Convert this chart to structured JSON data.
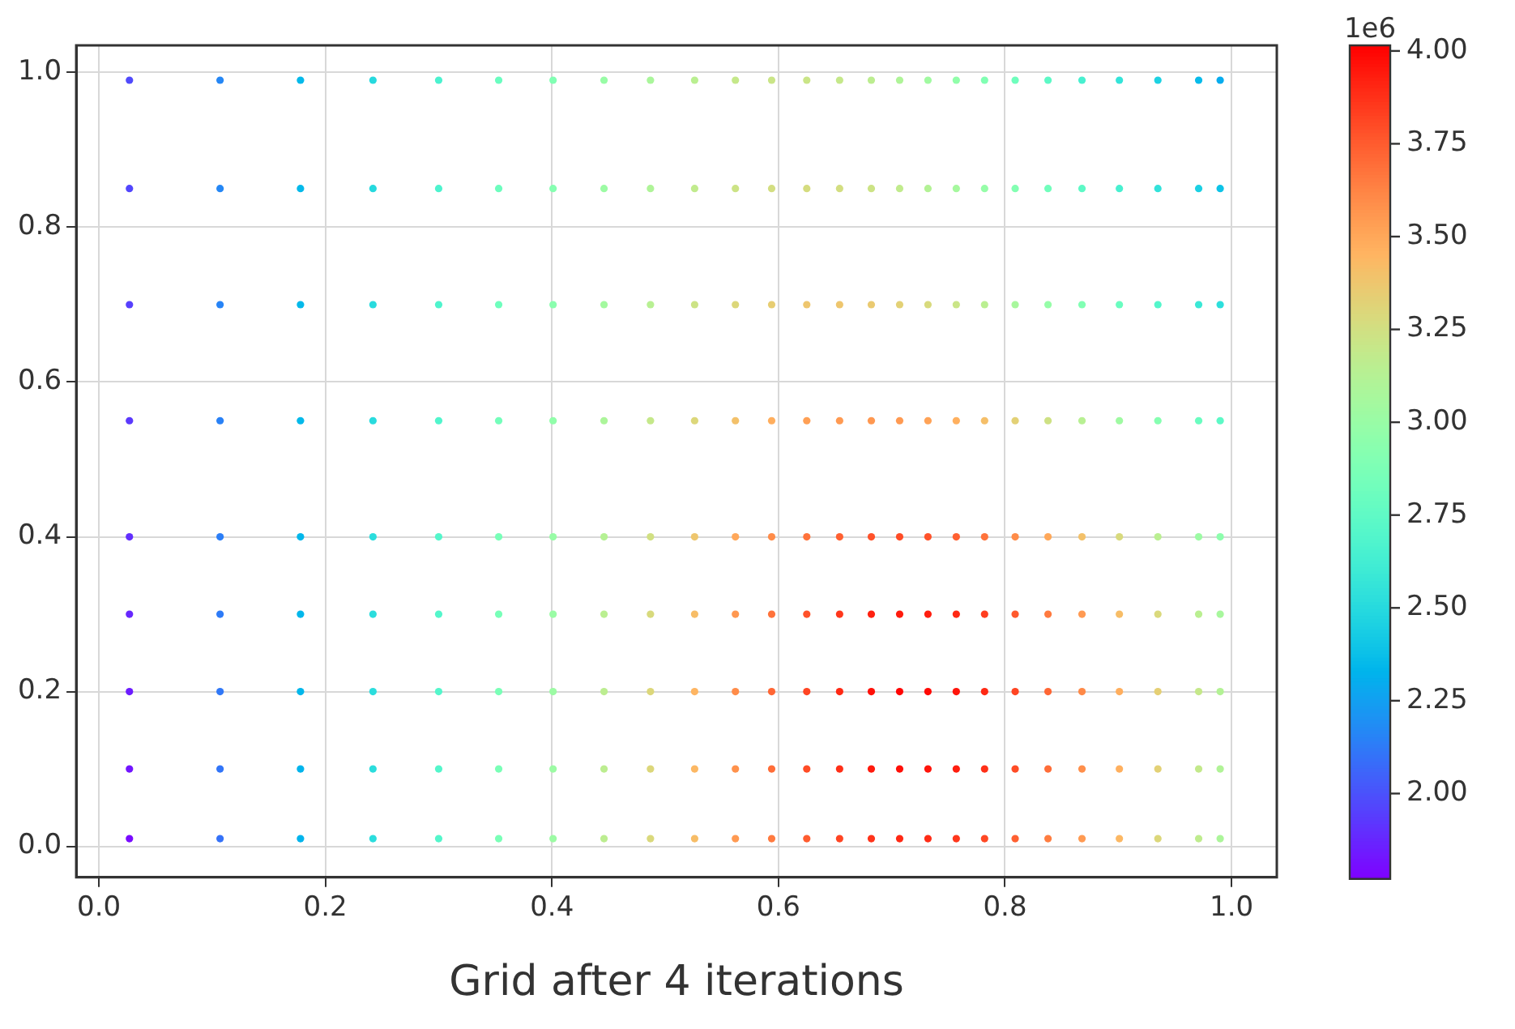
{
  "chart_data": {
    "type": "scatter",
    "xlabel": "Grid after 4 iterations",
    "clabel": "1e6",
    "grid": true,
    "marker": "circle",
    "xlim": [
      -0.02,
      1.04
    ],
    "ylim": [
      -0.04,
      1.035
    ],
    "xticks": [
      {
        "value": 0,
        "label": "0.0"
      },
      {
        "value": 0.2,
        "label": "0.2"
      },
      {
        "value": 0.4,
        "label": "0.4"
      },
      {
        "value": 0.6,
        "label": "0.6"
      },
      {
        "value": 0.8,
        "label": "0.8"
      },
      {
        "value": 1,
        "label": "1.0"
      }
    ],
    "yticks": [
      {
        "value": 0,
        "label": "0.0"
      },
      {
        "value": 0.2,
        "label": "0.2"
      },
      {
        "value": 0.4,
        "label": "0.4"
      },
      {
        "value": 0.6,
        "label": "0.6"
      },
      {
        "value": 0.8,
        "label": "0.8"
      },
      {
        "value": 1,
        "label": "1.0"
      }
    ],
    "clim": [
      1.77,
      4.015
    ],
    "cticks": [
      {
        "value": 2,
        "label": "2.00"
      },
      {
        "value": 2.25,
        "label": "2.25"
      },
      {
        "value": 2.5,
        "label": "2.50"
      },
      {
        "value": 2.75,
        "label": "2.75"
      },
      {
        "value": 3,
        "label": "3.00"
      },
      {
        "value": 3.25,
        "label": "3.25"
      },
      {
        "value": 3.5,
        "label": "3.50"
      },
      {
        "value": 3.75,
        "label": "3.75"
      },
      {
        "value": 4,
        "label": "4.00"
      }
    ],
    "x": [
      0.027,
      0.027,
      0.027,
      0.027,
      0.027,
      0.027,
      0.027,
      0.027,
      0.027,
      0.107,
      0.107,
      0.107,
      0.107,
      0.107,
      0.107,
      0.107,
      0.107,
      0.107,
      0.178,
      0.178,
      0.178,
      0.178,
      0.178,
      0.178,
      0.178,
      0.178,
      0.178,
      0.242,
      0.242,
      0.242,
      0.242,
      0.242,
      0.242,
      0.242,
      0.242,
      0.242,
      0.3,
      0.3,
      0.3,
      0.3,
      0.3,
      0.3,
      0.3,
      0.3,
      0.3,
      0.353,
      0.353,
      0.353,
      0.353,
      0.353,
      0.353,
      0.353,
      0.353,
      0.353,
      0.401,
      0.401,
      0.401,
      0.401,
      0.401,
      0.401,
      0.401,
      0.401,
      0.401,
      0.446,
      0.446,
      0.446,
      0.446,
      0.446,
      0.446,
      0.446,
      0.446,
      0.446,
      0.487,
      0.487,
      0.487,
      0.487,
      0.487,
      0.487,
      0.487,
      0.487,
      0.487,
      0.526,
      0.526,
      0.526,
      0.526,
      0.526,
      0.526,
      0.526,
      0.526,
      0.526,
      0.562,
      0.562,
      0.562,
      0.562,
      0.562,
      0.562,
      0.562,
      0.562,
      0.562,
      0.594,
      0.594,
      0.594,
      0.594,
      0.594,
      0.594,
      0.594,
      0.594,
      0.594,
      0.625,
      0.625,
      0.625,
      0.625,
      0.625,
      0.625,
      0.625,
      0.625,
      0.625,
      0.654,
      0.654,
      0.654,
      0.654,
      0.654,
      0.654,
      0.654,
      0.654,
      0.654,
      0.682,
      0.682,
      0.682,
      0.682,
      0.682,
      0.682,
      0.682,
      0.682,
      0.682,
      0.707,
      0.707,
      0.707,
      0.707,
      0.707,
      0.707,
      0.707,
      0.707,
      0.707,
      0.732,
      0.732,
      0.732,
      0.732,
      0.732,
      0.732,
      0.732,
      0.732,
      0.732,
      0.757,
      0.757,
      0.757,
      0.757,
      0.757,
      0.757,
      0.757,
      0.757,
      0.757,
      0.782,
      0.782,
      0.782,
      0.782,
      0.782,
      0.782,
      0.782,
      0.782,
      0.782,
      0.809,
      0.809,
      0.809,
      0.809,
      0.809,
      0.809,
      0.809,
      0.809,
      0.809,
      0.838,
      0.838,
      0.838,
      0.838,
      0.838,
      0.838,
      0.838,
      0.838,
      0.838,
      0.868,
      0.868,
      0.868,
      0.868,
      0.868,
      0.868,
      0.868,
      0.868,
      0.868,
      0.901,
      0.901,
      0.901,
      0.901,
      0.901,
      0.901,
      0.901,
      0.901,
      0.901,
      0.935,
      0.935,
      0.935,
      0.935,
      0.935,
      0.935,
      0.935,
      0.935,
      0.935,
      0.971,
      0.971,
      0.971,
      0.971,
      0.971,
      0.971,
      0.971,
      0.971,
      0.971,
      0.99,
      0.99,
      0.99,
      0.99,
      0.99,
      0.99,
      0.99,
      0.99,
      0.99
    ],
    "values": [
      0.99,
      0.85,
      0.7,
      0.55,
      0.4,
      0.3,
      0.2,
      0.1,
      0.01,
      0.99,
      0.85,
      0.7,
      0.55,
      0.4,
      0.3,
      0.2,
      0.1,
      0.01,
      0.99,
      0.85,
      0.7,
      0.55,
      0.4,
      0.3,
      0.2,
      0.1,
      0.01,
      0.99,
      0.85,
      0.7,
      0.55,
      0.4,
      0.3,
      0.2,
      0.1,
      0.01,
      0.99,
      0.85,
      0.7,
      0.55,
      0.4,
      0.3,
      0.2,
      0.1,
      0.01,
      0.99,
      0.85,
      0.7,
      0.55,
      0.4,
      0.3,
      0.2,
      0.1,
      0.01,
      0.99,
      0.85,
      0.7,
      0.55,
      0.4,
      0.3,
      0.2,
      0.1,
      0.01,
      0.99,
      0.85,
      0.7,
      0.55,
      0.4,
      0.3,
      0.2,
      0.1,
      0.01,
      0.99,
      0.85,
      0.7,
      0.55,
      0.4,
      0.3,
      0.2,
      0.1,
      0.01,
      0.99,
      0.85,
      0.7,
      0.55,
      0.4,
      0.3,
      0.2,
      0.1,
      0.01,
      0.99,
      0.85,
      0.7,
      0.55,
      0.4,
      0.3,
      0.2,
      0.1,
      0.01,
      0.99,
      0.85,
      0.7,
      0.55,
      0.4,
      0.3,
      0.2,
      0.1,
      0.01,
      0.99,
      0.85,
      0.7,
      0.55,
      0.4,
      0.3,
      0.2,
      0.1,
      0.01,
      0.99,
      0.85,
      0.7,
      0.55,
      0.4,
      0.3,
      0.2,
      0.1,
      0.01,
      0.99,
      0.85,
      0.7,
      0.55,
      0.4,
      0.3,
      0.2,
      0.1,
      0.01,
      0.99,
      0.85,
      0.7,
      0.55,
      0.4,
      0.3,
      0.2,
      0.1,
      0.01,
      0.99,
      0.85,
      0.7,
      0.55,
      0.4,
      0.3,
      0.2,
      0.1,
      0.01,
      0.99,
      0.85,
      0.7,
      0.55,
      0.4,
      0.3,
      0.2,
      0.1,
      0.01,
      0.99,
      0.85,
      0.7,
      0.55,
      0.4,
      0.3,
      0.2,
      0.1,
      0.01,
      0.99,
      0.85,
      0.7,
      0.55,
      0.4,
      0.3,
      0.2,
      0.1,
      0.01,
      0.99,
      0.85,
      0.7,
      0.55,
      0.4,
      0.3,
      0.2,
      0.1,
      0.01,
      0.99,
      0.85,
      0.7,
      0.55,
      0.4,
      0.3,
      0.2,
      0.1,
      0.01,
      0.99,
      0.85,
      0.7,
      0.55,
      0.4,
      0.3,
      0.2,
      0.1,
      0.01,
      0.99,
      0.85,
      0.7,
      0.55,
      0.4,
      0.3,
      0.2,
      0.1,
      0.01,
      0.99,
      0.85,
      0.7,
      0.55,
      0.4,
      0.3,
      0.2,
      0.1,
      0.01,
      0.99,
      0.85,
      0.7,
      0.55,
      0.4,
      0.3,
      0.2,
      0.1,
      0.01
    ],
    "cvalues": [
      1.98,
      1.97,
      1.95,
      1.93,
      1.9,
      1.88,
      1.85,
      1.83,
      1.8,
      2.17,
      2.17,
      2.16,
      2.15,
      2.14,
      2.13,
      2.12,
      2.11,
      2.1,
      2.35,
      2.35,
      2.35,
      2.35,
      2.34,
      2.34,
      2.34,
      2.33,
      2.33,
      2.5,
      2.5,
      2.51,
      2.51,
      2.52,
      2.52,
      2.52,
      2.52,
      2.52,
      2.66,
      2.67,
      2.68,
      2.69,
      2.7,
      2.7,
      2.7,
      2.7,
      2.7,
      2.8,
      2.81,
      2.82,
      2.84,
      2.86,
      2.86,
      2.87,
      2.87,
      2.87,
      2.9,
      2.92,
      2.94,
      2.97,
      3.0,
      3.01,
      3.02,
      3.02,
      3.02,
      3.0,
      3.02,
      3.05,
      3.09,
      3.13,
      3.15,
      3.16,
      3.16,
      3.16,
      3.08,
      3.1,
      3.14,
      3.2,
      3.25,
      3.28,
      3.3,
      3.3,
      3.29,
      3.15,
      3.18,
      3.23,
      3.3,
      3.38,
      3.42,
      3.45,
      3.44,
      3.42,
      3.2,
      3.23,
      3.3,
      3.4,
      3.5,
      3.56,
      3.6,
      3.58,
      3.55,
      3.22,
      3.26,
      3.35,
      3.48,
      3.6,
      3.68,
      3.72,
      3.7,
      3.66,
      3.22,
      3.27,
      3.38,
      3.53,
      3.68,
      3.78,
      3.82,
      3.8,
      3.75,
      3.2,
      3.26,
      3.38,
      3.55,
      3.74,
      3.86,
      3.9,
      3.88,
      3.82,
      3.16,
      3.23,
      3.36,
      3.56,
      3.78,
      3.92,
      3.97,
      3.94,
      3.87,
      3.1,
      3.18,
      3.33,
      3.55,
      3.8,
      3.94,
      4.0,
      3.97,
      3.9,
      3.04,
      3.12,
      3.28,
      3.52,
      3.78,
      3.93,
      3.99,
      3.96,
      3.89,
      2.97,
      3.06,
      3.22,
      3.47,
      3.74,
      3.9,
      3.96,
      3.93,
      3.86,
      2.9,
      2.99,
      3.15,
      3.41,
      3.68,
      3.84,
      3.9,
      3.88,
      3.81,
      2.82,
      2.91,
      3.07,
      3.33,
      3.6,
      3.76,
      3.82,
      3.8,
      3.74,
      2.74,
      2.83,
      2.99,
      3.24,
      3.5,
      3.66,
      3.72,
      3.7,
      3.65,
      2.65,
      2.74,
      2.9,
      3.14,
      3.4,
      3.55,
      3.61,
      3.59,
      3.55,
      2.56,
      2.65,
      2.8,
      3.03,
      3.28,
      3.42,
      3.48,
      3.47,
      3.44,
      2.46,
      2.55,
      2.7,
      2.92,
      3.15,
      3.29,
      3.34,
      3.33,
      3.3,
      2.36,
      2.45,
      2.59,
      2.8,
      3.02,
      3.15,
      3.2,
      3.19,
      3.17,
      2.3,
      2.39,
      2.53,
      2.74,
      2.95,
      3.07,
      3.12,
      3.11,
      3.09
    ]
  }
}
